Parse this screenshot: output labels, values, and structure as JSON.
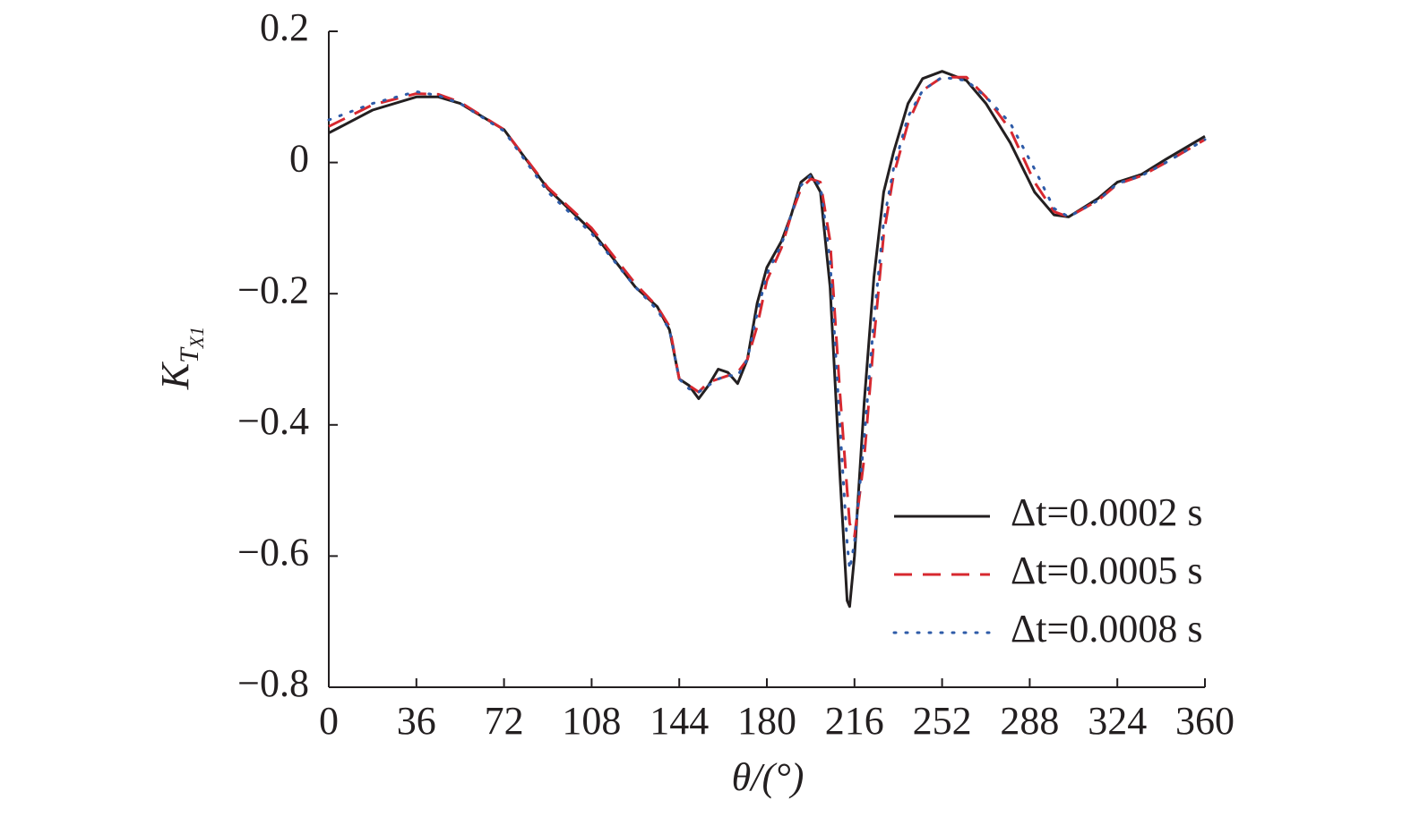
{
  "chart_data": {
    "type": "line",
    "xlabel": "θ/(°)",
    "ylabel": "K",
    "ylabel_sub": "T",
    "ylabel_subsub": "X1",
    "xlim": [
      0,
      360
    ],
    "xticks": [
      0,
      36,
      72,
      108,
      144,
      180,
      216,
      252,
      288,
      324,
      360
    ],
    "ylim": [
      -0.8,
      0.2
    ],
    "yticks": [
      {
        "value": -0.8,
        "label": "−0.8"
      },
      {
        "value": -0.6,
        "label": "−0.6"
      },
      {
        "value": -0.4,
        "label": "−0.4"
      },
      {
        "value": -0.2,
        "label": "−0.2"
      },
      0,
      0.2
    ],
    "legend": "lower right",
    "x": [
      0,
      18,
      36,
      45,
      54,
      72,
      90,
      108,
      126,
      135,
      140,
      144,
      148,
      152,
      156,
      160,
      164,
      168,
      172,
      176,
      180,
      186,
      190,
      194,
      198,
      202,
      206,
      210,
      213,
      214,
      216,
      220,
      224,
      228,
      232,
      238,
      244,
      252,
      262,
      270,
      280,
      290,
      298,
      304,
      316,
      324,
      334,
      344,
      360
    ],
    "series": [
      {
        "name": "Δt=0.0002 s",
        "color": "#231f20",
        "dash": "solid",
        "values": [
          0.045,
          0.08,
          0.1,
          0.1,
          0.09,
          0.05,
          -0.04,
          -0.104,
          -0.19,
          -0.22,
          -0.255,
          -0.33,
          -0.34,
          -0.36,
          -0.34,
          -0.315,
          -0.32,
          -0.337,
          -0.3,
          -0.215,
          -0.16,
          -0.12,
          -0.08,
          -0.03,
          -0.018,
          -0.045,
          -0.19,
          -0.475,
          -0.668,
          -0.677,
          -0.6,
          -0.365,
          -0.175,
          -0.045,
          0.015,
          0.09,
          0.128,
          0.139,
          0.125,
          0.09,
          0.03,
          -0.045,
          -0.08,
          -0.083,
          -0.055,
          -0.03,
          -0.018,
          0.005,
          0.04
        ]
      },
      {
        "name": "Δt=0.0005 s",
        "color": "#d7282f",
        "dash": "dashed",
        "values": [
          0.055,
          0.088,
          0.105,
          0.104,
          0.092,
          0.05,
          -0.038,
          -0.1,
          -0.185,
          -0.22,
          -0.25,
          -0.33,
          -0.34,
          -0.35,
          -0.335,
          -0.33,
          -0.325,
          -0.32,
          -0.3,
          -0.25,
          -0.18,
          -0.13,
          -0.08,
          -0.04,
          -0.025,
          -0.03,
          -0.12,
          -0.35,
          -0.5,
          -0.55,
          -0.57,
          -0.45,
          -0.27,
          -0.11,
          -0.02,
          0.06,
          0.11,
          0.13,
          0.13,
          0.1,
          0.05,
          -0.03,
          -0.075,
          -0.083,
          -0.058,
          -0.033,
          -0.02,
          0.0,
          0.035
        ]
      },
      {
        "name": "Δt=0.0008 s",
        "color": "#2e5ba8",
        "dash": "dotted",
        "values": [
          0.065,
          0.09,
          0.108,
          0.102,
          0.09,
          0.048,
          -0.045,
          -0.108,
          -0.19,
          -0.225,
          -0.255,
          -0.33,
          -0.345,
          -0.35,
          -0.34,
          -0.33,
          -0.325,
          -0.325,
          -0.3,
          -0.23,
          -0.17,
          -0.125,
          -0.08,
          -0.035,
          -0.02,
          -0.035,
          -0.15,
          -0.4,
          -0.58,
          -0.62,
          -0.58,
          -0.42,
          -0.24,
          -0.09,
          -0.01,
          0.07,
          0.11,
          0.13,
          0.125,
          0.1,
          0.06,
          -0.01,
          -0.07,
          -0.083,
          -0.058,
          -0.032,
          -0.02,
          0.0,
          0.035
        ]
      }
    ]
  }
}
